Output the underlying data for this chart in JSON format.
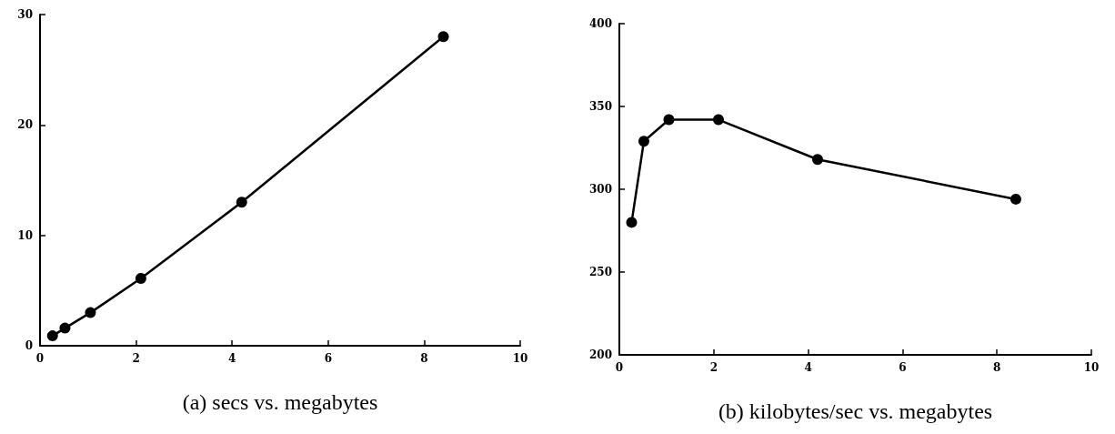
{
  "chart_data": [
    {
      "type": "line",
      "xlabel": "(a) secs vs. megabytes",
      "x": [
        0.26,
        0.52,
        1.05,
        2.1,
        4.2,
        8.4
      ],
      "values": [
        0.9,
        1.6,
        3.0,
        6.1,
        13.0,
        28.0
      ],
      "color": "#000000",
      "marker": "circle",
      "line_style": "solid",
      "grid": false,
      "xlim": [
        0,
        10
      ],
      "xticks": [
        0,
        2,
        4,
        6,
        8,
        10
      ],
      "ylim": [
        0,
        30
      ],
      "yticks": [
        0,
        10,
        20,
        30
      ]
    },
    {
      "type": "line",
      "xlabel": "(b) kilobytes/sec vs. megabytes",
      "x": [
        0.26,
        0.52,
        1.05,
        2.1,
        4.2,
        8.4
      ],
      "values": [
        280,
        329,
        342,
        342,
        318,
        294
      ],
      "color": "#000000",
      "marker": "circle",
      "line_style": "solid",
      "grid": false,
      "xlim": [
        0,
        10
      ],
      "xticks": [
        0,
        2,
        4,
        6,
        8,
        10
      ],
      "ylim": [
        200,
        400
      ],
      "yticks": [
        200,
        250,
        300,
        350,
        400
      ]
    }
  ]
}
